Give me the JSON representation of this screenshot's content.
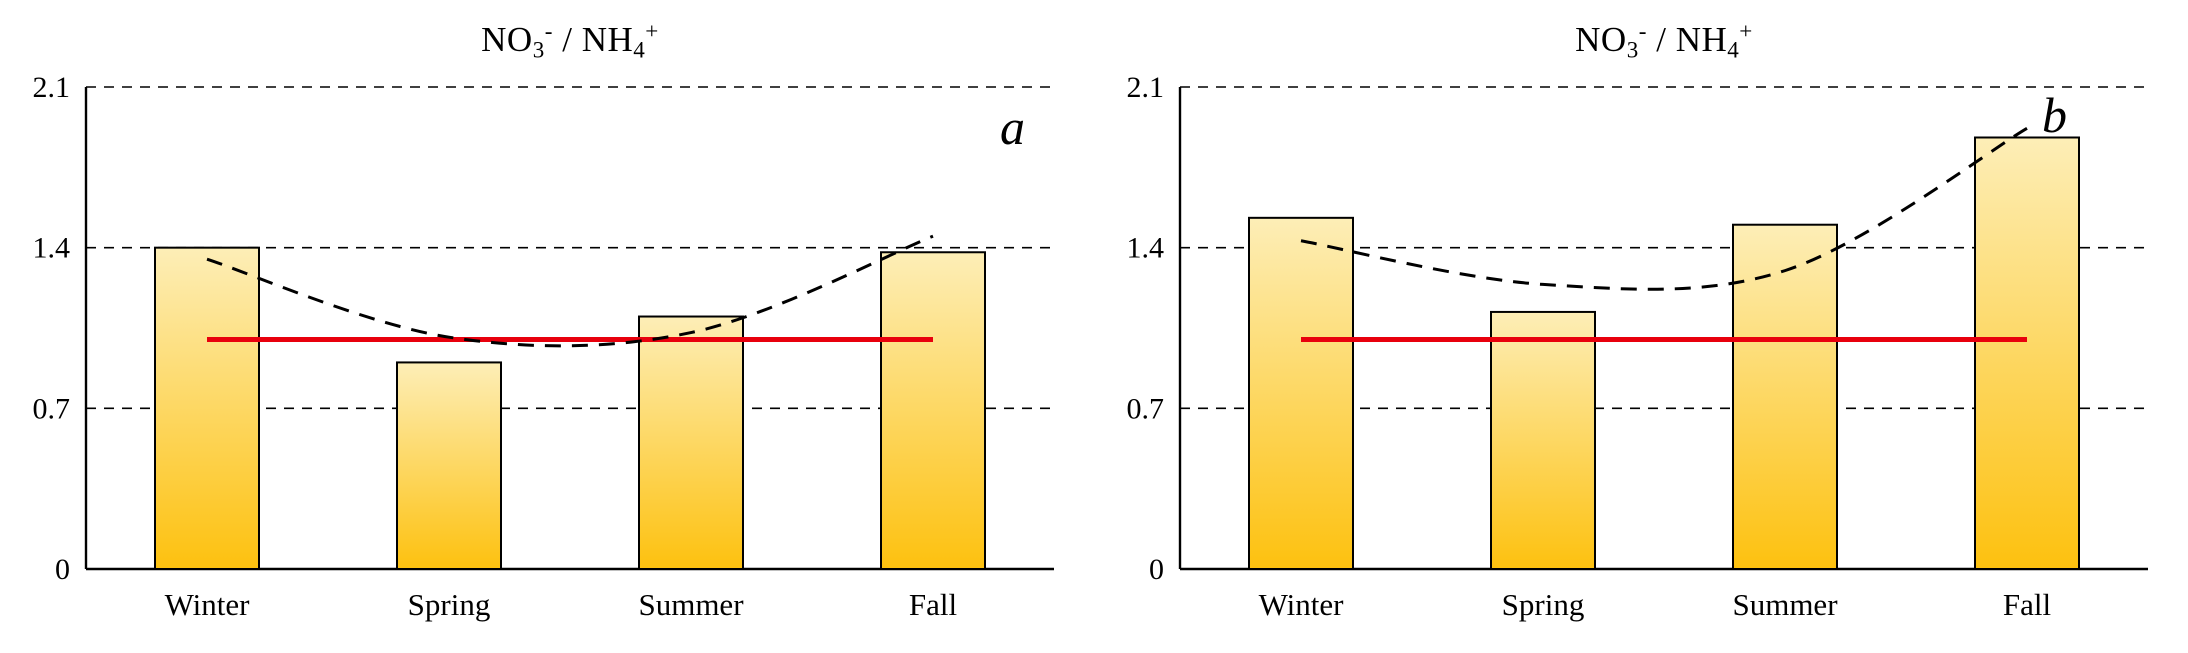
{
  "figure": {
    "background": "#ffffff"
  },
  "chart_data": [
    {
      "type": "bar",
      "panel_label": "a",
      "title": "NO3- / NH4+",
      "title_parts": {
        "base1": "NO",
        "sub1": "3",
        "sup1": "-",
        "mid": " / NH",
        "sub2": "4",
        "sup2": "+"
      },
      "categories": [
        "Winter",
        "Spring",
        "Summer",
        "Fall"
      ],
      "values": [
        1.4,
        0.9,
        1.1,
        1.38
      ],
      "yticks": [
        "0",
        "0.7",
        "1.4",
        "2.1"
      ],
      "ytick_values": [
        0,
        0.7,
        1.4,
        2.1
      ],
      "ylim": [
        0,
        2.1
      ],
      "grid": "dashed-horizontal",
      "legend": "none",
      "reference_line": {
        "value": 1.0,
        "color": "#e8000d",
        "style": "solid"
      },
      "trend_line": {
        "style": "dashed",
        "color": "#000000",
        "values": [
          1.35,
          1.01,
          1.03,
          1.45
        ]
      },
      "bar_style": {
        "fill_top": "#fdeeb7",
        "fill_bottom": "#fdc10f",
        "border": "#000000"
      }
    },
    {
      "type": "bar",
      "panel_label": "b",
      "title": "NO3- / NH4+",
      "title_parts": {
        "base1": "NO",
        "sub1": "3",
        "sup1": "-",
        "mid": " / NH",
        "sub2": "4",
        "sup2": "+"
      },
      "categories": [
        "Winter",
        "Spring",
        "Summer",
        "Fall"
      ],
      "values": [
        1.53,
        1.12,
        1.5,
        1.88
      ],
      "yticks": [
        "0",
        "0.7",
        "1.4",
        "2.1"
      ],
      "ytick_values": [
        0,
        0.7,
        1.4,
        2.1
      ],
      "ylim": [
        0,
        2.1
      ],
      "grid": "dashed-horizontal",
      "legend": "none",
      "reference_line": {
        "value": 1.0,
        "color": "#e8000d",
        "style": "solid"
      },
      "trend_line": {
        "style": "dashed",
        "color": "#000000",
        "values": [
          1.43,
          1.24,
          1.3,
          1.92
        ]
      },
      "bar_style": {
        "fill_top": "#fdeeb7",
        "fill_bottom": "#fdc10f",
        "border": "#000000"
      }
    }
  ]
}
